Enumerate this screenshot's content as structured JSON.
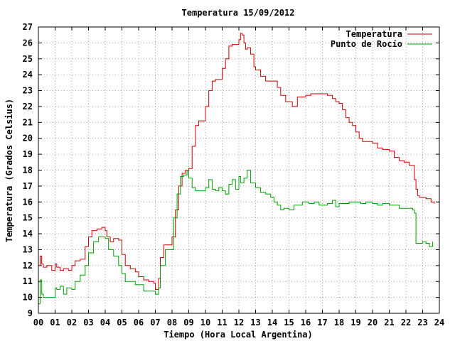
{
  "chart_data": {
    "type": "line",
    "title": "Temperatura 15/09/2012",
    "xlabel": "Tiempo (Hora Local Argentina)",
    "ylabel": "Temperatura (Grados Celsius)",
    "xlim": [
      0,
      24
    ],
    "ylim": [
      9,
      27
    ],
    "xticks": [
      "00",
      "01",
      "02",
      "03",
      "04",
      "05",
      "06",
      "07",
      "08",
      "09",
      "10",
      "11",
      "12",
      "13",
      "14",
      "15",
      "16",
      "17",
      "18",
      "19",
      "20",
      "21",
      "22",
      "23",
      "24"
    ],
    "yticks": [
      9,
      10,
      11,
      12,
      13,
      14,
      15,
      16,
      17,
      18,
      19,
      20,
      21,
      22,
      23,
      24,
      25,
      26,
      27
    ],
    "grid": true,
    "legend_position": "top-right",
    "series": [
      {
        "name": "Temperatura",
        "color": "#cc0000",
        "x": [
          0.0,
          0.1,
          0.2,
          0.3,
          0.5,
          0.8,
          1.0,
          1.1,
          1.3,
          1.5,
          1.8,
          2.0,
          2.2,
          2.5,
          2.8,
          3.0,
          3.2,
          3.5,
          3.8,
          4.0,
          4.1,
          4.3,
          4.5,
          4.8,
          5.0,
          5.2,
          5.5,
          5.8,
          6.0,
          6.3,
          6.6,
          6.9,
          7.0,
          7.2,
          7.3,
          7.5,
          7.8,
          8.0,
          8.2,
          8.4,
          8.6,
          8.8,
          9.0,
          9.2,
          9.4,
          9.6,
          9.8,
          10.0,
          10.2,
          10.4,
          10.6,
          10.8,
          11.0,
          11.2,
          11.4,
          11.6,
          11.8,
          12.0,
          12.1,
          12.2,
          12.3,
          12.4,
          12.5,
          12.7,
          12.9,
          13.0,
          13.3,
          13.6,
          14.0,
          14.3,
          14.5,
          14.8,
          15.0,
          15.2,
          15.5,
          15.8,
          16.0,
          16.3,
          16.6,
          17.0,
          17.3,
          17.6,
          17.8,
          18.0,
          18.2,
          18.4,
          18.6,
          18.8,
          19.0,
          19.2,
          19.4,
          19.6,
          19.8,
          20.0,
          20.3,
          20.6,
          21.0,
          21.3,
          21.6,
          21.9,
          22.2,
          22.5,
          22.6,
          22.7,
          22.8,
          23.0,
          23.2,
          23.5,
          23.7
        ],
        "values": [
          12.0,
          12.6,
          12.1,
          11.9,
          12.0,
          11.7,
          12.1,
          11.9,
          11.7,
          11.8,
          11.7,
          12.0,
          12.3,
          12.4,
          13.2,
          13.8,
          14.2,
          14.3,
          14.4,
          14.2,
          13.8,
          13.5,
          13.7,
          13.6,
          12.7,
          12.0,
          11.8,
          11.6,
          11.3,
          11.1,
          11.0,
          10.9,
          10.5,
          11.2,
          12.5,
          13.3,
          13.3,
          13.8,
          15.5,
          17.0,
          17.8,
          18.0,
          18.1,
          19.5,
          20.8,
          21.1,
          21.1,
          22.0,
          23.0,
          23.6,
          23.7,
          23.7,
          24.4,
          25.0,
          25.8,
          25.9,
          25.9,
          26.2,
          26.6,
          26.5,
          26.0,
          25.6,
          25.7,
          25.3,
          24.5,
          24.3,
          23.9,
          23.6,
          23.6,
          23.2,
          22.7,
          22.3,
          22.3,
          22.0,
          22.6,
          22.6,
          22.7,
          22.8,
          22.8,
          22.8,
          22.7,
          22.5,
          22.3,
          22.2,
          21.8,
          21.3,
          21.0,
          20.8,
          20.4,
          20.0,
          19.8,
          19.8,
          19.8,
          19.7,
          19.4,
          19.3,
          19.2,
          18.8,
          18.6,
          18.5,
          18.3,
          17.4,
          16.8,
          16.4,
          16.3,
          16.3,
          16.2,
          16.0,
          15.9
        ]
      },
      {
        "name": "Punto de Rocío",
        "color": "#00a000",
        "x": [
          0.0,
          0.1,
          0.2,
          0.3,
          0.5,
          0.8,
          1.0,
          1.1,
          1.3,
          1.5,
          1.7,
          2.0,
          2.2,
          2.5,
          2.8,
          3.0,
          3.3,
          3.6,
          4.0,
          4.2,
          4.5,
          4.8,
          5.0,
          5.2,
          5.5,
          5.8,
          6.0,
          6.3,
          6.6,
          6.9,
          7.0,
          7.2,
          7.3,
          7.6,
          7.9,
          8.1,
          8.3,
          8.5,
          8.7,
          8.9,
          9.0,
          9.2,
          9.4,
          9.6,
          9.8,
          10.0,
          10.2,
          10.4,
          10.6,
          10.8,
          11.0,
          11.2,
          11.4,
          11.6,
          11.8,
          12.0,
          12.1,
          12.3,
          12.5,
          12.7,
          13.0,
          13.3,
          13.6,
          13.9,
          14.1,
          14.3,
          14.5,
          14.7,
          15.0,
          15.3,
          15.6,
          15.8,
          16.0,
          16.2,
          16.5,
          16.8,
          17.0,
          17.3,
          17.6,
          17.8,
          18.0,
          18.3,
          18.6,
          19.0,
          19.3,
          19.6,
          20.0,
          20.3,
          20.6,
          21.0,
          21.3,
          21.6,
          22.0,
          22.2,
          22.4,
          22.5,
          22.6,
          22.8,
          23.0,
          23.2,
          23.4,
          23.6
        ],
        "values": [
          9.6,
          11.1,
          10.2,
          10.0,
          10.0,
          10.0,
          10.6,
          10.5,
          10.7,
          10.2,
          10.6,
          10.5,
          11.0,
          11.4,
          12.0,
          12.8,
          13.5,
          13.8,
          13.7,
          13.0,
          12.6,
          12.0,
          11.5,
          11.0,
          11.0,
          10.8,
          10.8,
          10.4,
          10.4,
          10.4,
          10.2,
          10.6,
          12.0,
          13.0,
          13.0,
          15.0,
          16.5,
          17.6,
          17.7,
          18.0,
          17.5,
          16.9,
          16.7,
          16.7,
          16.7,
          16.9,
          17.4,
          16.8,
          16.7,
          16.9,
          16.7,
          16.5,
          17.1,
          17.4,
          16.8,
          17.6,
          17.2,
          17.5,
          18.0,
          17.2,
          16.9,
          16.6,
          16.5,
          16.3,
          16.0,
          15.8,
          15.5,
          15.6,
          15.5,
          15.8,
          15.8,
          16.0,
          16.0,
          15.9,
          16.0,
          15.8,
          15.8,
          15.9,
          16.1,
          15.7,
          15.9,
          15.9,
          16.0,
          16.0,
          15.9,
          16.0,
          15.9,
          15.8,
          15.9,
          15.8,
          15.8,
          15.6,
          15.6,
          15.6,
          15.5,
          15.3,
          13.4,
          13.4,
          13.5,
          13.4,
          13.2,
          13.5
        ]
      }
    ]
  }
}
